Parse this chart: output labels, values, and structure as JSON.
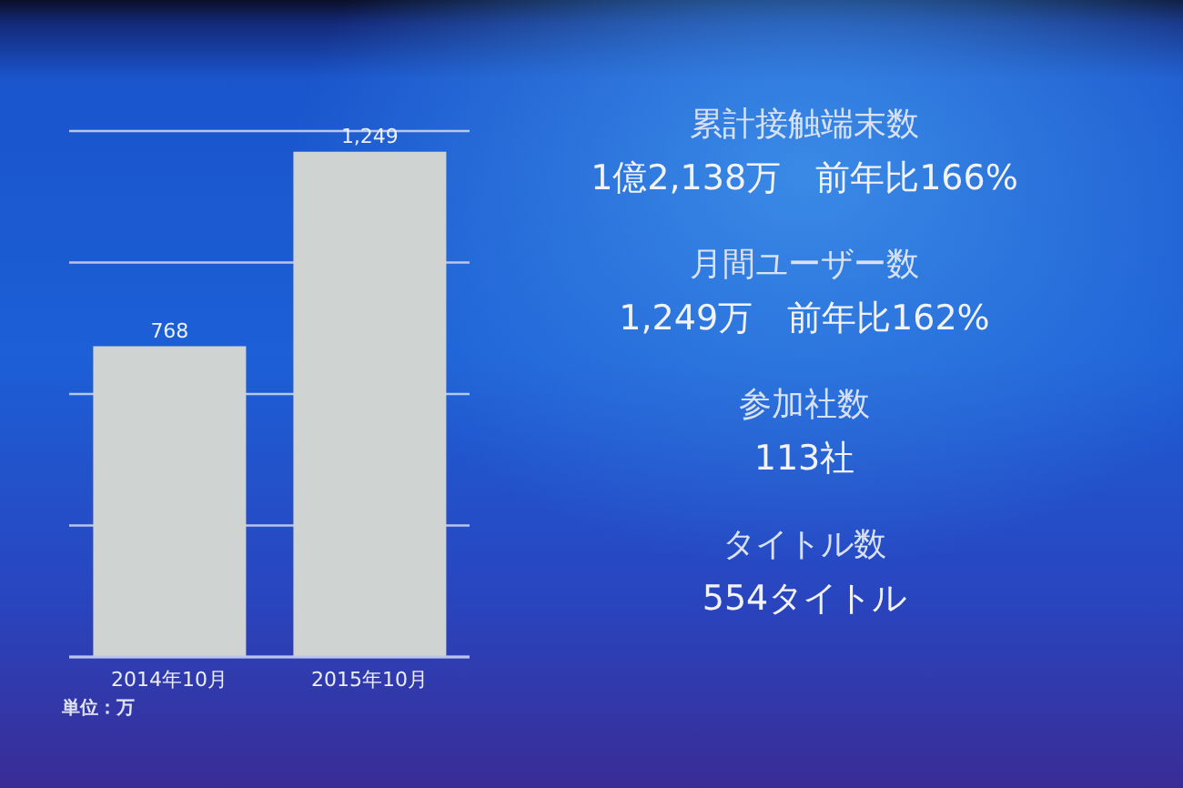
{
  "chart_data": [
    {
      "type": "bar",
      "categories": [
        "2014年10月",
        "2015年10月"
      ],
      "values": [
        768,
        1249
      ],
      "value_labels": [
        "768",
        "1,249"
      ],
      "color": "#cfd3d2",
      "ylim": [
        0,
        1300
      ],
      "yticks": [
        {
          "value": 325,
          "label": null
        },
        {
          "value": 650,
          "label": null
        },
        {
          "value": 975,
          "label": null
        },
        {
          "value": 1300,
          "label": null
        }
      ],
      "grid": "y",
      "tick_labels": "x",
      "annotations": [
        "単位：万"
      ]
    },
    {
      "type": "other",
      "annotations": [
        "累計接触端末数",
        "1億2,138万　前年比166%",
        "月間ユーザー数",
        "1,249万　前年比162%",
        "参加社数",
        "113社",
        "タイトル数",
        "554タイトル"
      ]
    }
  ]
}
